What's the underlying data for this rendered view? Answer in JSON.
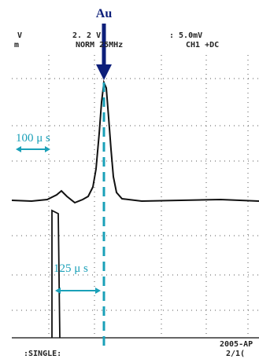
{
  "header": {
    "ch_left": "V",
    "ch_left_unit": "m",
    "voltage": "2. 2 V",
    "bandwidth": "NORM 25MHz",
    "sensitivity": ": 5.0mV",
    "coupling": "CH1 +DC"
  },
  "annotations": {
    "peak_label": "Au",
    "interval_1": "100 μ s",
    "interval_2": "125 μ s"
  },
  "footer": {
    "mode": ":SINGLE:",
    "date": "2005-AP",
    "page": "2/1("
  }
}
